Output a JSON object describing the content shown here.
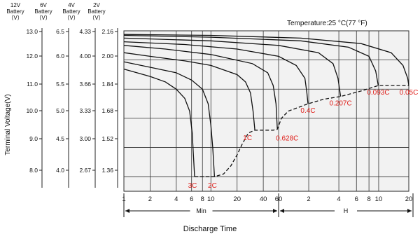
{
  "chart_data": {
    "type": "line",
    "title": "",
    "annotation": "Temperature:25 °C(77 °F)",
    "xlabel": "Discharge Time",
    "ylabel": "Terminal Voltage(V)",
    "x_unit_segments": [
      {
        "label": "Min",
        "ticks": [
          "1",
          "2",
          "4",
          "6",
          "8",
          "10",
          "20",
          "40",
          "60"
        ]
      },
      {
        "label": "H",
        "ticks": [
          "2",
          "4",
          "6",
          "8",
          "10",
          "20"
        ]
      }
    ],
    "x_scale": "log",
    "x_range_minutes": [
      60,
      1200
    ],
    "y_axes": [
      {
        "header": [
          "12V",
          "Battery",
          "（V）"
        ],
        "ticks": [
          "13.0",
          "12.0",
          "11.0",
          "10.0",
          "9.0",
          "8.0"
        ]
      },
      {
        "header": [
          "6V",
          "Battery",
          "（V）"
        ],
        "ticks": [
          "6.5",
          "6.0",
          "5.5",
          "5.0",
          "4.5",
          "4.0"
        ]
      },
      {
        "header": [
          "4V",
          "Battery",
          "（V）"
        ],
        "ticks": [
          "4.33",
          "4.00",
          "3.66",
          "3.33",
          "3.00",
          "2.67"
        ]
      },
      {
        "header": [
          "2V",
          "Battery",
          "（V）"
        ],
        "ticks": [
          "2.16",
          "2.00",
          "1.84",
          "1.68",
          "1.52",
          "1.36"
        ]
      }
    ],
    "ylim_2v": [
      1.28,
      2.16
    ],
    "grid": true,
    "series": [
      {
        "name": "3C",
        "values": [
          [
            1,
            1.95
          ],
          [
            2,
            1.91
          ],
          [
            3,
            1.88
          ],
          [
            4,
            1.84
          ],
          [
            5,
            1.79
          ],
          [
            5.7,
            1.72
          ],
          [
            6.1,
            1.6
          ],
          [
            6.3,
            1.48
          ],
          [
            6.5,
            1.36
          ]
        ]
      },
      {
        "name": "2C",
        "values": [
          [
            1,
            1.99
          ],
          [
            2,
            1.96
          ],
          [
            4,
            1.93
          ],
          [
            6,
            1.89
          ],
          [
            8,
            1.84
          ],
          [
            9.3,
            1.76
          ],
          [
            10,
            1.64
          ],
          [
            10.5,
            1.52
          ],
          [
            11,
            1.36
          ]
        ]
      },
      {
        "name": "1C",
        "values": [
          [
            1,
            2.04
          ],
          [
            2,
            2.02
          ],
          [
            5,
            1.995
          ],
          [
            10,
            1.97
          ],
          [
            20,
            1.92
          ],
          [
            25,
            1.88
          ],
          [
            28.5,
            1.82
          ],
          [
            30.5,
            1.72
          ],
          [
            32,
            1.615
          ]
        ]
      },
      {
        "name": "0.628C",
        "values": [
          [
            1,
            2.08
          ],
          [
            3,
            2.06
          ],
          [
            10,
            2.03
          ],
          [
            30,
            1.98
          ],
          [
            45,
            1.93
          ],
          [
            52,
            1.86
          ],
          [
            56,
            1.76
          ],
          [
            58,
            1.62
          ]
        ]
      },
      {
        "name": "0.4C",
        "values": [
          [
            1,
            2.1
          ],
          [
            5,
            2.085
          ],
          [
            20,
            2.06
          ],
          [
            60,
            2.02
          ],
          [
            90,
            1.97
          ],
          [
            110,
            1.9
          ],
          [
            115,
            1.82
          ],
          [
            118,
            1.76
          ]
        ]
      },
      {
        "name": "0.207C",
        "values": [
          [
            1,
            2.12
          ],
          [
            10,
            2.105
          ],
          [
            60,
            2.08
          ],
          [
            150,
            2.04
          ],
          [
            210,
            1.98
          ],
          [
            235,
            1.9
          ],
          [
            250,
            1.8
          ]
        ]
      },
      {
        "name": "0.093C",
        "values": [
          [
            1,
            2.135
          ],
          [
            10,
            2.125
          ],
          [
            100,
            2.105
          ],
          [
            300,
            2.07
          ],
          [
            480,
            2.02
          ],
          [
            560,
            1.94
          ],
          [
            595,
            1.86
          ]
        ]
      },
      {
        "name": "0.05C",
        "values": [
          [
            1,
            2.14
          ],
          [
            10,
            2.135
          ],
          [
            100,
            2.12
          ],
          [
            400,
            2.09
          ],
          [
            800,
            2.04
          ],
          [
            1050,
            1.97
          ],
          [
            1170,
            1.9
          ],
          [
            1200,
            1.86
          ]
        ]
      }
    ],
    "cutoff_curve": [
      [
        6.5,
        1.36
      ],
      [
        11,
        1.36
      ],
      [
        14,
        1.375
      ],
      [
        17,
        1.42
      ],
      [
        20,
        1.48
      ],
      [
        23,
        1.54
      ],
      [
        27,
        1.6
      ],
      [
        32,
        1.615
      ],
      [
        40,
        1.615
      ],
      [
        52,
        1.615
      ],
      [
        58,
        1.62
      ],
      [
        64,
        1.68
      ],
      [
        75,
        1.72
      ],
      [
        95,
        1.74
      ],
      [
        118,
        1.76
      ],
      [
        170,
        1.785
      ],
      [
        250,
        1.8
      ],
      [
        400,
        1.83
      ],
      [
        595,
        1.86
      ],
      [
        900,
        1.86
      ],
      [
        1200,
        1.86
      ]
    ],
    "marker_labels": [
      "3C",
      "2C",
      "1C",
      "0.628C",
      "0.4C",
      "0.207C",
      "0.093C",
      "0.05C"
    ],
    "label_color": "#e0201b",
    "plot_background": "#f2f2f2"
  }
}
